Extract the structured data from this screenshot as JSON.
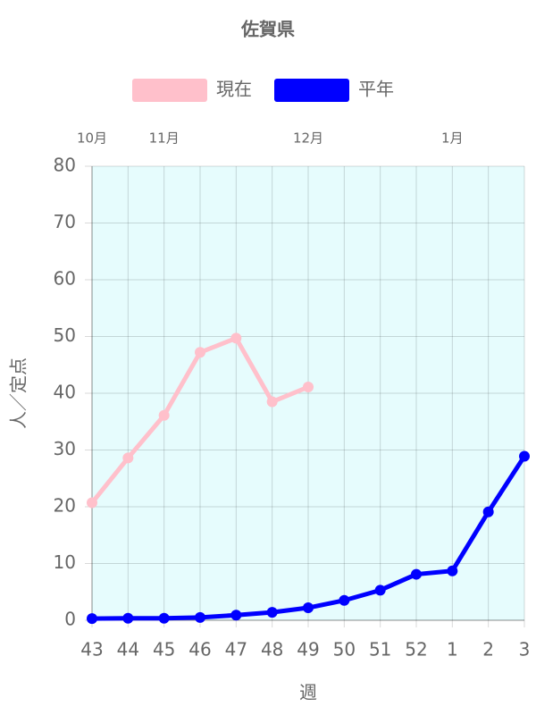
{
  "chart_data": {
    "type": "line",
    "title": "佐賀県",
    "categories": [
      "43",
      "44",
      "45",
      "46",
      "47",
      "48",
      "49",
      "50",
      "51",
      "52",
      "1",
      "2",
      "3"
    ],
    "x2_categories": [
      "10月",
      null,
      "11月",
      null,
      null,
      null,
      "12月",
      null,
      null,
      null,
      "1月",
      null,
      null
    ],
    "x_label": "週",
    "y_label": "人／定点",
    "series": [
      {
        "name": "現在",
        "color": "#ffc0cb",
        "values": [
          20.7,
          28.6,
          36.1,
          47.2,
          49.7,
          38.5,
          41.1,
          null,
          null,
          null,
          null,
          null,
          null
        ]
      },
      {
        "name": "平年",
        "color": "#0000ff",
        "values": [
          0.3,
          0.35,
          0.35,
          0.5,
          0.9,
          1.4,
          2.2,
          3.5,
          5.3,
          8.1,
          8.7,
          19.1,
          28.9
        ]
      }
    ],
    "ylim": [
      0,
      80
    ],
    "yticks": [
      0,
      10,
      20,
      30,
      40,
      50,
      60,
      70,
      80
    ],
    "grid": true,
    "legend": "top",
    "plot_background": "#e6fcfd"
  }
}
